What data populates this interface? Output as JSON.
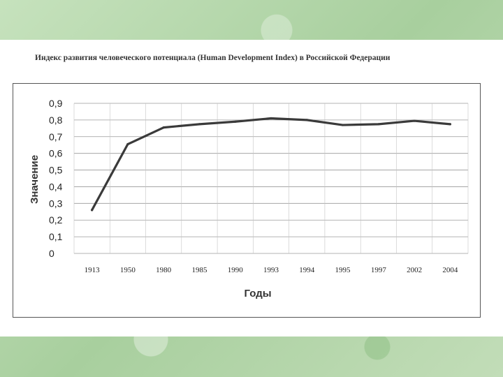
{
  "chart_data": {
    "type": "line",
    "title": "Индекс развития человеческого потенциала (Human Development Index) в Российской Федерации",
    "xlabel": "Годы",
    "ylabel": "Значение",
    "categories": [
      "1913",
      "1950",
      "1980",
      "1985",
      "1990",
      "1993",
      "1994",
      "1995",
      "1997",
      "2002",
      "2004"
    ],
    "y_ticks": [
      "0",
      "0,1",
      "0,2",
      "0,3",
      "0,4",
      "0,5",
      "0,6",
      "0,7",
      "0,8",
      "0,9"
    ],
    "ylim": [
      0,
      0.9
    ],
    "grid": true,
    "series": [
      {
        "values": [
          0.26,
          0.655,
          0.755,
          0.775,
          0.79,
          0.81,
          0.8,
          0.77,
          0.775,
          0.795,
          0.775
        ]
      }
    ]
  }
}
